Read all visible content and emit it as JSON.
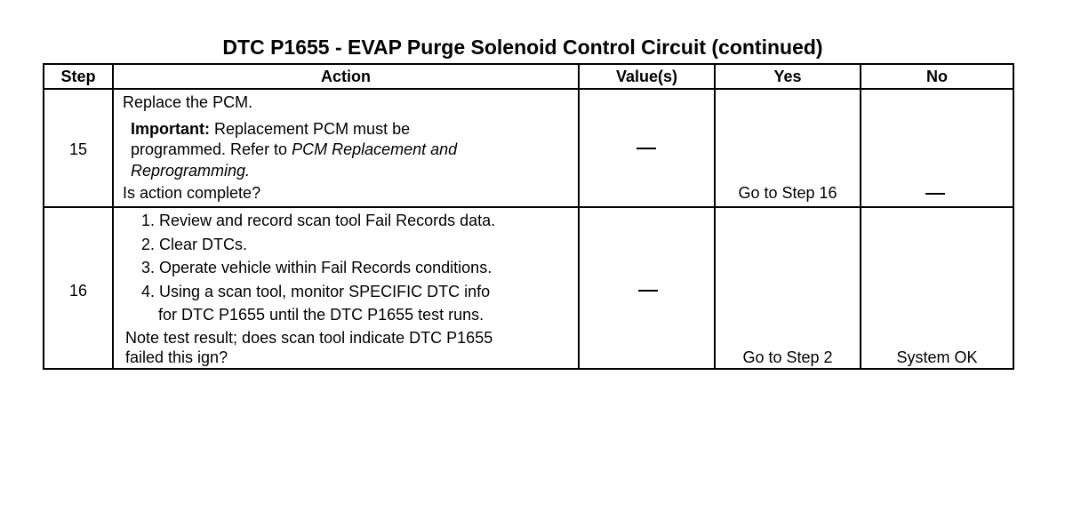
{
  "title": "DTC P1655 - EVAP Purge Solenoid Control Circuit (continued)",
  "headers": [
    "Step",
    "Action",
    "Value(s)",
    "Yes",
    "No"
  ],
  "rows": [
    {
      "step": "15",
      "action": {
        "line1": "Replace the PCM.",
        "important_label": "Important:",
        "important_text": " Replacement PCM must be",
        "line3a": "programmed. Refer to ",
        "line3b": "PCM Replacement and",
        "line4": "Reprogramming.",
        "question": "Is action complete?"
      },
      "value": "—",
      "yes": "Go to Step 16",
      "no": "—"
    },
    {
      "step": "16",
      "action": {
        "items": [
          "1. Review and record scan tool Fail Records data.",
          "2. Clear DTCs.",
          "3. Operate vehicle within Fail Records conditions.",
          "4. Using a scan tool, monitor SPECIFIC DTC info",
          "for DTC P1655 until the DTC P1655 test runs."
        ],
        "question1": "Note test result; does scan tool indicate DTC P1655",
        "question2": "failed this ign?"
      },
      "value": "—",
      "yes": "Go to Step 2",
      "no": "System OK"
    }
  ]
}
